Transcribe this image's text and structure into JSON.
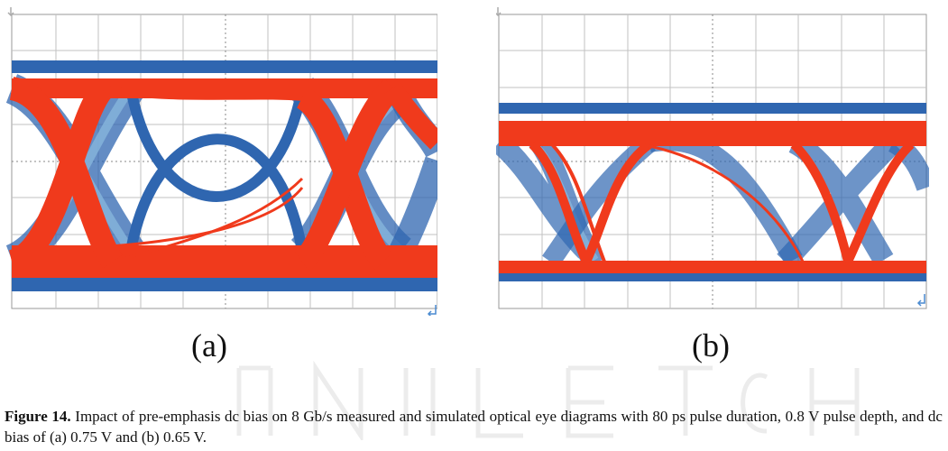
{
  "figure": {
    "panels": [
      {
        "id": "a",
        "label": "(a)"
      },
      {
        "id": "b",
        "label": "(b)"
      }
    ],
    "caption_label": "Figure 14.",
    "caption_text": " Impact of pre-emphasis dc bias on 8 Gb/s measured and simulated optical eye diagrams with 80 ps pulse duration, 0.8 V pulse depth, and dc bias of (a) 0.75 V and (b) 0.65 V.",
    "colors": {
      "measured": "#2f66b0",
      "measured_light": "#86b5dc",
      "simulated": "#f03a1c",
      "grid": "#b8b8b8",
      "frame": "#9a9a9a"
    },
    "icons": [
      "trigger-arrow-icon",
      "corner-arrow-icon"
    ]
  }
}
